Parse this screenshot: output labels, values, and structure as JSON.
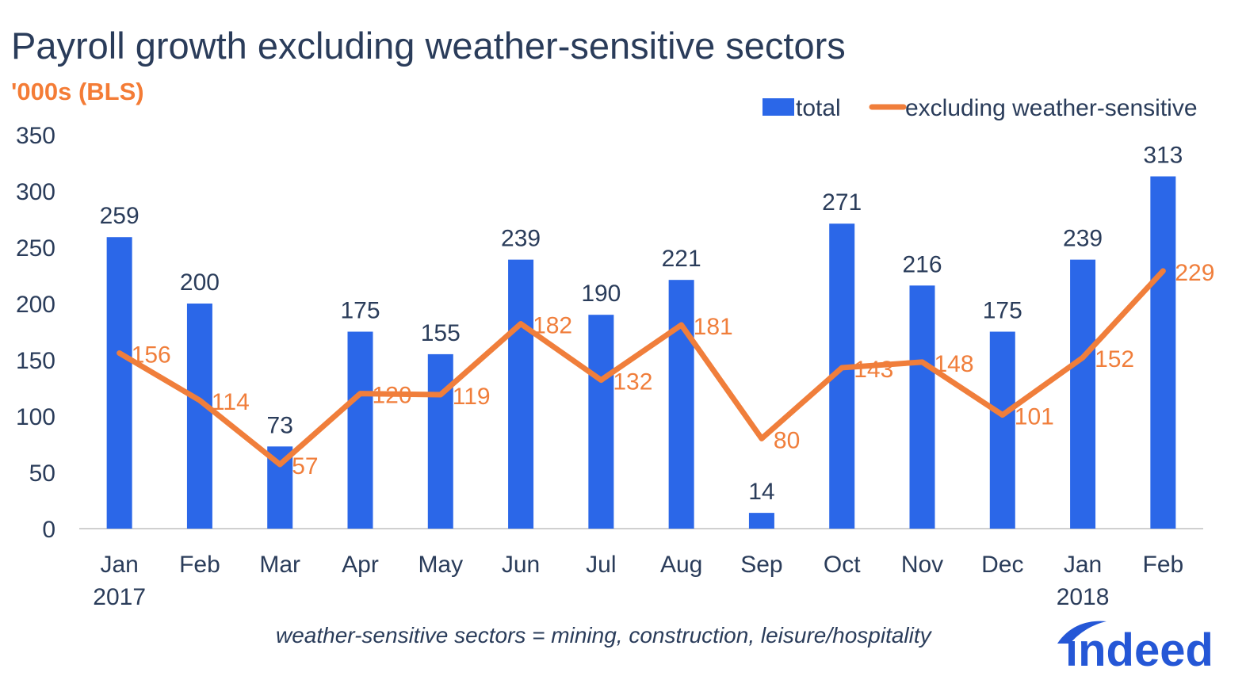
{
  "title": "Payroll growth excluding weather-sensitive sectors",
  "subtitle": "'000s (BLS)",
  "footnote": "weather-sensitive sectors = mining, construction, leisure/hospitality",
  "logo_text": "indeed",
  "colors": {
    "bar": "#2b67e8",
    "line": "#f07e3b",
    "title": "#2a3c5a",
    "subtitle": "#f47c36",
    "axis_text": "#2a3c5a",
    "logo": "#2557d6"
  },
  "chart_data": {
    "type": "bar",
    "title": "Payroll growth excluding weather-sensitive sectors",
    "ylabel": "'000s (BLS)",
    "xlabel": "",
    "ylim": [
      0,
      350
    ],
    "yticks": [
      0,
      50,
      100,
      150,
      200,
      250,
      300,
      350
    ],
    "grid": false,
    "legend_position": "top-right",
    "categories": [
      "Jan",
      "Feb",
      "Mar",
      "Apr",
      "May",
      "Jun",
      "Jul",
      "Aug",
      "Sep",
      "Oct",
      "Nov",
      "Dec",
      "Jan",
      "Feb"
    ],
    "year_labels": [
      "2017",
      "",
      "",
      "",
      "",
      "",
      "",
      "",
      "",
      "",
      "",
      "",
      "2018",
      ""
    ],
    "series": [
      {
        "name": "total",
        "type": "bar",
        "values": [
          259,
          200,
          73,
          175,
          155,
          239,
          190,
          221,
          14,
          271,
          216,
          175,
          239,
          313
        ]
      },
      {
        "name": "excluding weather-sensitive",
        "type": "line",
        "values": [
          156,
          114,
          57,
          120,
          119,
          182,
          132,
          181,
          80,
          143,
          148,
          101,
          152,
          229
        ]
      }
    ]
  }
}
